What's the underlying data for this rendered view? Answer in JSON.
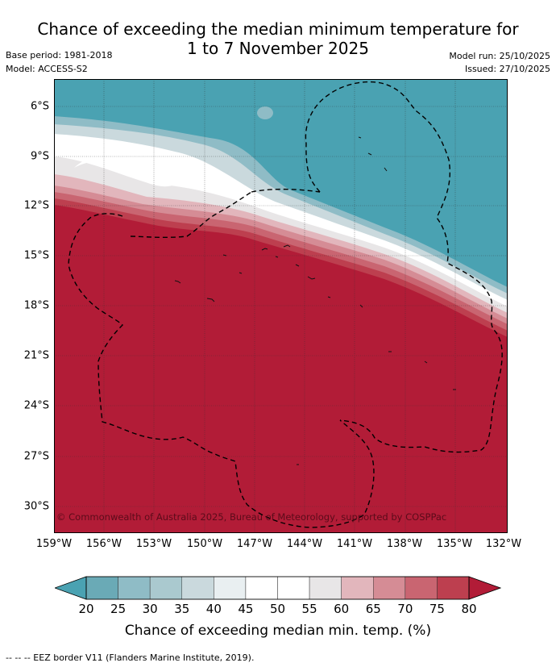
{
  "title_line1": "Chance of exceeding the median minimum temperature for",
  "title_line2": "1 to 7 November 2025",
  "base_period": "Base period: 1981-2018",
  "model": "Model: ACCESS-S2",
  "model_run": "Model run: 25/10/2025",
  "issued": "Issued: 27/10/2025",
  "lat_labels": [
    "6°S",
    "9°S",
    "12°S",
    "15°S",
    "18°S",
    "21°S",
    "24°S",
    "27°S",
    "30°S"
  ],
  "lon_labels": [
    "159°W",
    "156°W",
    "153°W",
    "150°W",
    "147°W",
    "144°W",
    "141°W",
    "138°W",
    "135°W",
    "132°W"
  ],
  "copyright": "© Commonwealth of Australia 2025, Bureau of Meteorology, supported by COSPPac",
  "colorbar": {
    "ticks": [
      "20",
      "25",
      "30",
      "35",
      "40",
      "45",
      "50",
      "55",
      "60",
      "65",
      "70",
      "75",
      "80"
    ],
    "colors": [
      "#6aaab6",
      "#8fbcc6",
      "#aac9cf",
      "#cad9dd",
      "#e9eff1",
      "#ffffff",
      "#ffffff",
      "#e8e6e7",
      "#e2b6bc",
      "#d58c95",
      "#c96571",
      "#bd3f4f"
    ],
    "under_color": "#4aa2b2",
    "over_color": "#b21c37",
    "label": "Chance of exceeding median min. temp. (%)"
  },
  "footer": "--  --  -- EEZ border V11 (Flanders Marine Institute, 2019)."
}
